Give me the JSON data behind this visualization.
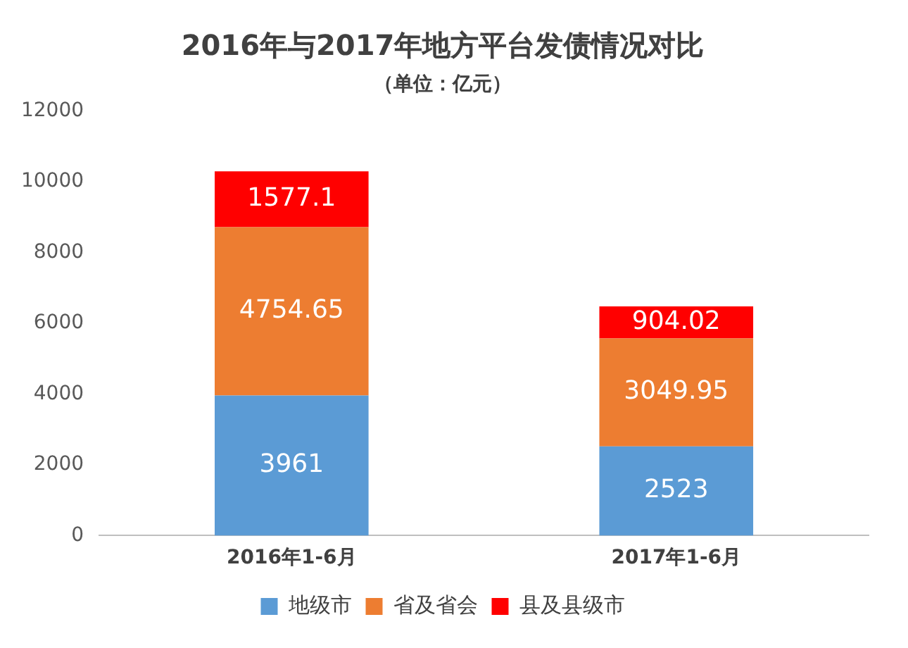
{
  "chart_data": {
    "type": "bar",
    "title": "2016年与2017年地方平台发债情况对比",
    "subtitle": "（单位：亿元）",
    "categories": [
      "2016年1-6月",
      "2017年1-6月"
    ],
    "stacked": true,
    "series": [
      {
        "name": "地级市",
        "color": "#5b9bd5",
        "values": [
          3961,
          2523
        ]
      },
      {
        "name": "省及省会",
        "color": "#ed7d31",
        "values": [
          4754.65,
          3049.95
        ]
      },
      {
        "name": "县及县级市",
        "color": "#ff0000",
        "values": [
          1577.1,
          904.02
        ]
      }
    ],
    "ylim": [
      0,
      12000
    ],
    "yticks": [
      0,
      2000,
      4000,
      6000,
      8000,
      10000,
      12000
    ],
    "grid": false,
    "legend": "bottom",
    "data_labels": true
  }
}
